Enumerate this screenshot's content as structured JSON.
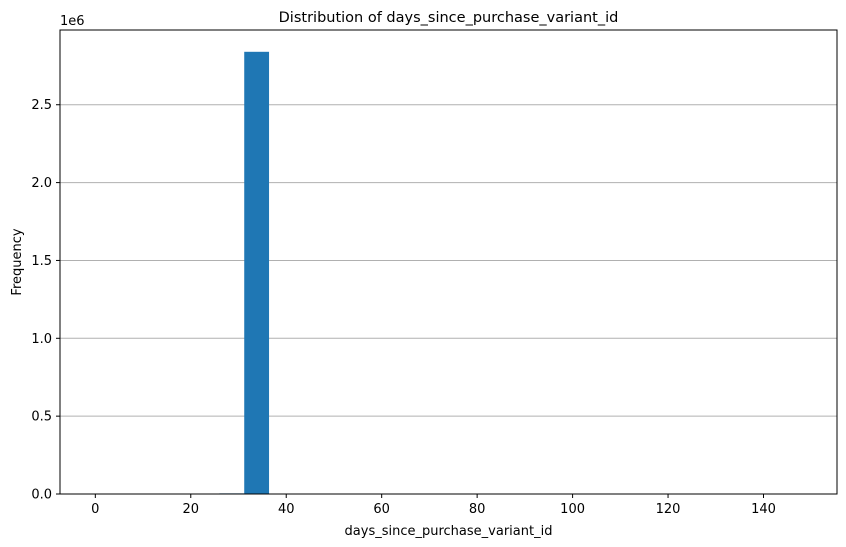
{
  "colors": {
    "bar": "#1f77b4",
    "grid": "#b0b0b0",
    "axis": "#000000",
    "background": "#ffffff"
  },
  "chart_data": {
    "type": "bar",
    "title": "Distribution of days_since_purchase_variant_id",
    "xlabel": "days_since_purchase_variant_id",
    "ylabel": "Frequency",
    "y_offset_label": "1e6",
    "xlim": [
      -7.4,
      155.4
    ],
    "ylim": [
      0,
      2980000
    ],
    "x_ticks": [
      0,
      20,
      40,
      60,
      80,
      100,
      120,
      140
    ],
    "y_ticks": [
      0,
      500000,
      1000000,
      1500000,
      2000000,
      2500000
    ],
    "y_tick_labels": [
      "0.0",
      "0.5",
      "1.0",
      "1.5",
      "2.0",
      "2.5"
    ],
    "grid": "y-major",
    "bin_edges": [
      0,
      5.2,
      10.4,
      15.6,
      20.8,
      26.0,
      31.2,
      36.4,
      41.6,
      46.8,
      52.0,
      57.2,
      62.4,
      67.6,
      72.8,
      78.0,
      83.2,
      88.4,
      93.6,
      98.8,
      104.0
    ],
    "values": [
      3000,
      2000,
      2000,
      2000,
      2000,
      4000,
      2840000,
      3000,
      2500,
      2500,
      2500,
      2500,
      2500,
      2500,
      2500,
      2500,
      2500,
      2500,
      2500,
      2500
    ]
  }
}
